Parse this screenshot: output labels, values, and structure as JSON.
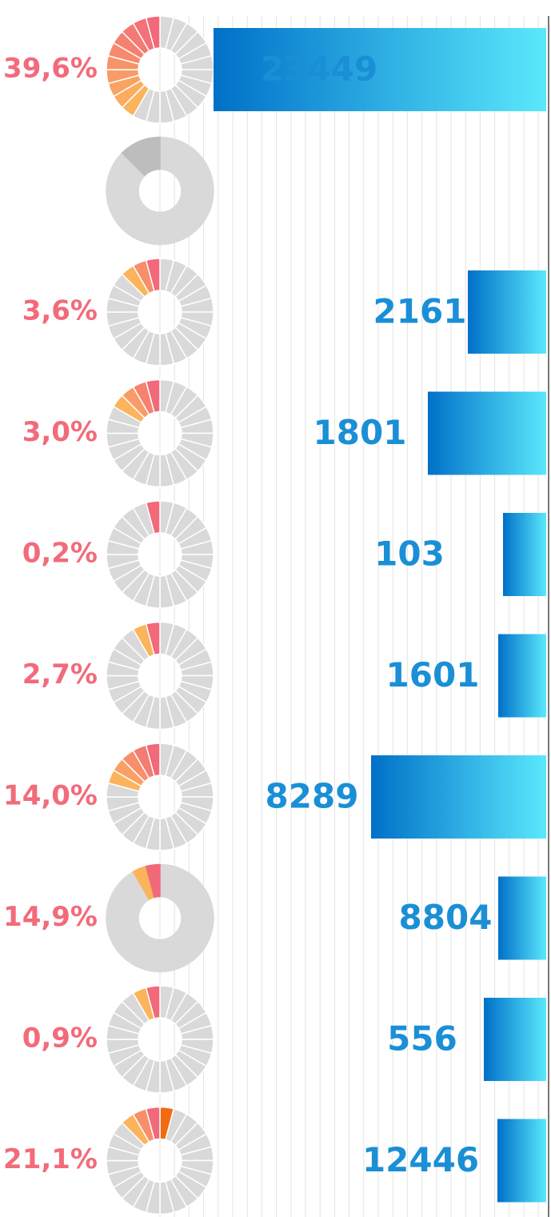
{
  "rows": [
    {
      "percent": "39,6%",
      "value": "23449"
    },
    {},
    {
      "percent": "3,6%",
      "value": "2161"
    },
    {
      "percent": "3,0%",
      "value": "1801"
    },
    {
      "percent": "0,2%",
      "value": "103"
    },
    {
      "percent": "2,7%",
      "value": "1601"
    },
    {
      "percent": "14,0%",
      "value": "8289"
    },
    {
      "percent": "14,9%",
      "value": "8804"
    },
    {
      "percent": "0,9%",
      "value": "556"
    },
    {
      "percent": "21,1%",
      "value": "12446"
    }
  ]
}
